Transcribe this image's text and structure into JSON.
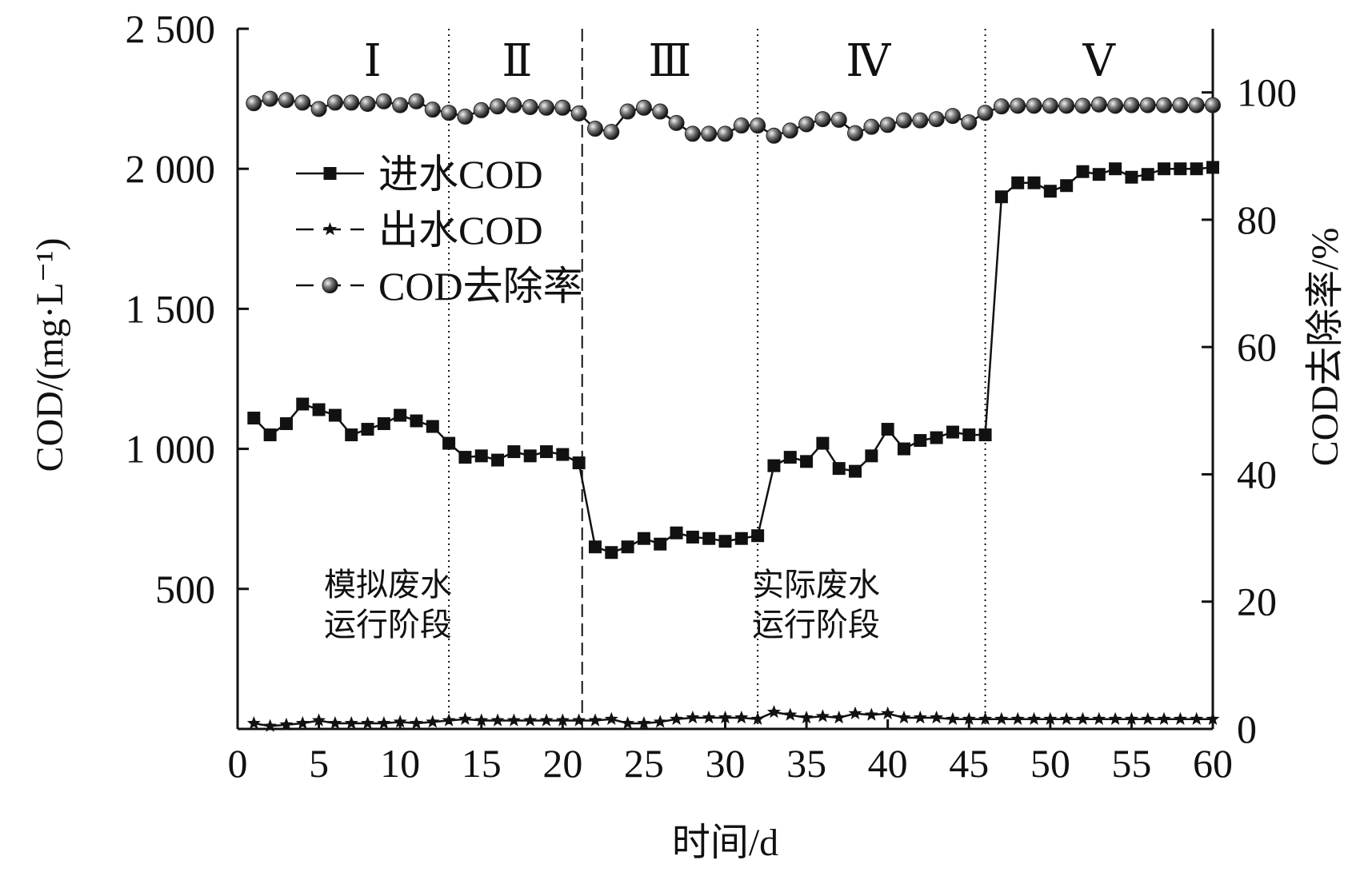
{
  "chart_data": {
    "type": "line",
    "x_label": "时间/d",
    "y_label_left": "COD/(mg·L⁻¹)",
    "y_label_right": "COD去除率/%",
    "x_range": [
      0,
      60
    ],
    "y_left_range": [
      0,
      2500
    ],
    "y_right_range": [
      0,
      110
    ],
    "x_ticks": [
      0,
      5,
      10,
      15,
      20,
      25,
      30,
      35,
      40,
      45,
      50,
      55,
      60
    ],
    "y_left_ticks": [
      500,
      1000,
      1500,
      2000,
      2500
    ],
    "y_left_tick_labels": [
      "500",
      "1 000",
      "1 500",
      "2 000",
      "2 500"
    ],
    "y_right_ticks": [
      0,
      20,
      40,
      60,
      80,
      100
    ],
    "y_right_tick_labels": [
      "0",
      "20",
      "40",
      "60",
      "80",
      "100"
    ],
    "x": [
      1,
      2,
      3,
      4,
      5,
      6,
      7,
      8,
      9,
      10,
      11,
      12,
      13,
      14,
      15,
      16,
      17,
      18,
      19,
      20,
      21,
      22,
      23,
      24,
      25,
      26,
      27,
      28,
      29,
      30,
      31,
      32,
      33,
      34,
      35,
      36,
      37,
      38,
      39,
      40,
      41,
      42,
      43,
      44,
      45,
      46,
      47,
      48,
      49,
      50,
      51,
      52,
      53,
      54,
      55,
      56,
      57,
      58,
      59,
      60
    ],
    "legend_position": "upper-left",
    "grid": false,
    "series": [
      {
        "name": "进水COD",
        "axis": "left",
        "marker": "square",
        "line_style": "solid",
        "values": [
          1110,
          1050,
          1090,
          1160,
          1140,
          1120,
          1050,
          1070,
          1090,
          1120,
          1100,
          1080,
          1020,
          970,
          975,
          960,
          990,
          975,
          990,
          980,
          950,
          650,
          630,
          650,
          680,
          660,
          700,
          685,
          680,
          670,
          680,
          690,
          940,
          970,
          955,
          1020,
          930,
          920,
          975,
          1070,
          1000,
          1030,
          1040,
          1060,
          1050,
          1050,
          1900,
          1950,
          1950,
          1920,
          1940,
          1990,
          1980,
          2000,
          1970,
          1980,
          2000,
          2000,
          2000,
          2005
        ]
      },
      {
        "name": "出水COD",
        "axis": "left",
        "marker": "star",
        "line_style": "dashed",
        "values": [
          20,
          10,
          15,
          20,
          30,
          20,
          20,
          20,
          20,
          25,
          20,
          25,
          30,
          35,
          30,
          30,
          30,
          30,
          30,
          30,
          30,
          30,
          35,
          20,
          20,
          25,
          35,
          40,
          40,
          40,
          40,
          35,
          60,
          50,
          40,
          45,
          40,
          55,
          50,
          55,
          40,
          40,
          40,
          35,
          35,
          35,
          35,
          35,
          35,
          35,
          35,
          35,
          35,
          35,
          35,
          35,
          35,
          35,
          35,
          35
        ]
      },
      {
        "name": "COD去除率",
        "axis": "right",
        "marker": "sphere",
        "line_style": "dashed",
        "values": [
          98.3,
          99.0,
          98.8,
          98.4,
          97.4,
          98.4,
          98.4,
          98.2,
          98.6,
          98.0,
          98.6,
          97.3,
          96.8,
          96.2,
          97.2,
          97.8,
          98.0,
          97.7,
          97.6,
          97.6,
          96.7,
          94.3,
          93.8,
          97.0,
          97.6,
          97.0,
          95.2,
          93.5,
          93.5,
          93.5,
          94.8,
          94.8,
          93.2,
          94.0,
          95.0,
          95.8,
          95.7,
          93.6,
          94.6,
          94.9,
          95.6,
          95.6,
          95.8,
          96.3,
          95.3,
          96.8,
          97.8,
          97.9,
          97.9,
          97.9,
          97.9,
          97.9,
          98.1,
          97.9,
          98.0,
          98.0,
          98.0,
          98.0,
          98.0,
          98.0
        ]
      }
    ],
    "phase_boundaries": [
      {
        "x": 13,
        "style": "dotted"
      },
      {
        "x": 21.2,
        "style": "dashed"
      },
      {
        "x": 32,
        "style": "dotted"
      },
      {
        "x": 46,
        "style": "dotted"
      }
    ],
    "phase_labels": [
      {
        "text": "Ⅰ",
        "x": 8.3
      },
      {
        "text": "Ⅱ",
        "x": 17.2
      },
      {
        "text": "Ⅲ",
        "x": 26.6
      },
      {
        "text": "Ⅳ",
        "x": 38.8
      },
      {
        "text": "Ⅴ",
        "x": 53
      }
    ],
    "annotations": [
      {
        "lines": [
          "模拟废水",
          "运行阶段"
        ]
      },
      {
        "lines": [
          "实际废水",
          "运行阶段"
        ]
      }
    ]
  }
}
